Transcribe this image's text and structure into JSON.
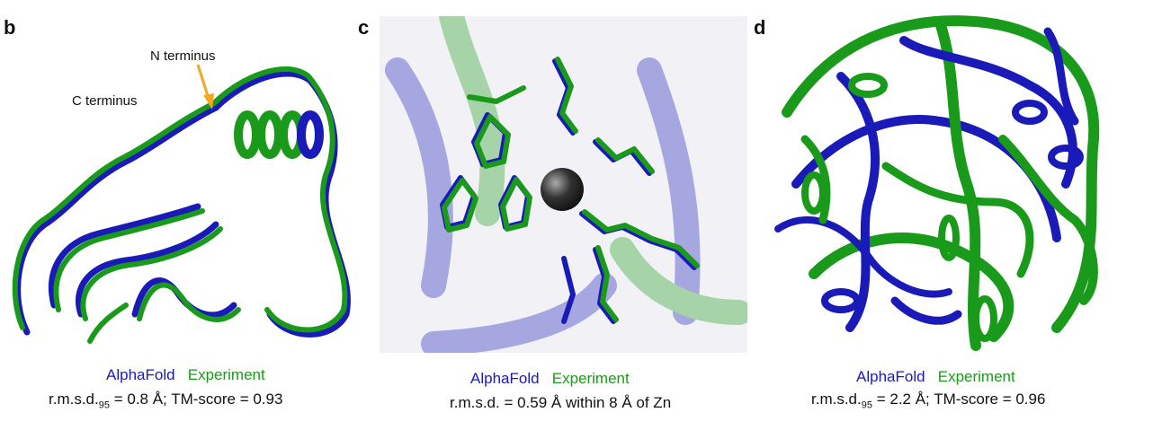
{
  "panels": {
    "b": {
      "letter": "b",
      "labels": {
        "n_terminus": "N terminus",
        "c_terminus": "C terminus"
      },
      "legend": {
        "alphafold": "AlphaFold",
        "experiment": "Experiment"
      },
      "metric": {
        "prefix": "r.m.s.d.",
        "sub": "95",
        "suffix": " = 0.8 Å; TM-score = 0.93"
      }
    },
    "c": {
      "letter": "c",
      "legend": {
        "alphafold": "AlphaFold",
        "experiment": "Experiment"
      },
      "metric": {
        "text": "r.m.s.d. = 0.59 Å within 8 Å of Zn"
      }
    },
    "d": {
      "letter": "d",
      "legend": {
        "alphafold": "AlphaFold",
        "experiment": "Experiment"
      },
      "metric": {
        "prefix": "r.m.s.d.",
        "sub": "95",
        "suffix": " = 2.2 Å; TM-score = 0.96"
      }
    }
  },
  "colors": {
    "alphafold": "#1a1ab8",
    "experiment": "#1a9a1a",
    "arrow": "#f5a623",
    "zinc": "#333333"
  },
  "icons": {
    "zinc_atom": "sphere"
  }
}
